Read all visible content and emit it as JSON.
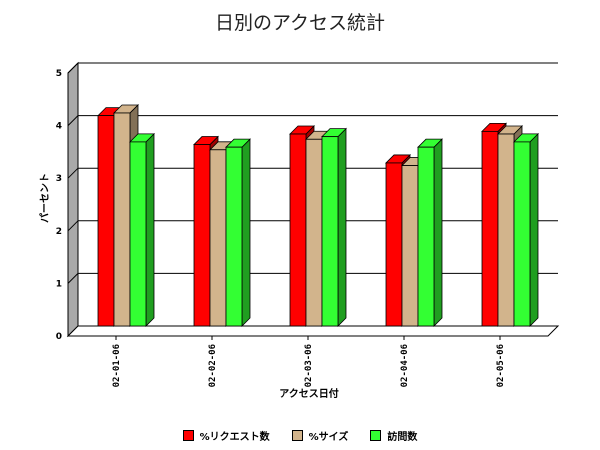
{
  "chart_data": {
    "type": "bar",
    "title": "日別のアクセス統計",
    "xlabel": "アクセス日付",
    "ylabel": "パーセント",
    "categories": [
      "02-01-06",
      "02-02-06",
      "02-03-06",
      "02-04-06",
      "02-05-06"
    ],
    "ylim": [
      0,
      5
    ],
    "yticks": [
      "0",
      "1",
      "2",
      "3",
      "4",
      "5"
    ],
    "grid": true,
    "legend_position": "bottom",
    "series": [
      {
        "name": "%リクエスト数",
        "color": "#ff0000",
        "values": [
          4.0,
          3.45,
          3.65,
          3.1,
          3.7
        ]
      },
      {
        "name": "%サイズ",
        "color": "#d2b48c",
        "values": [
          4.05,
          3.35,
          3.55,
          3.05,
          3.65
        ]
      },
      {
        "name": "訪問数",
        "color": "#33ff33",
        "values": [
          3.5,
          3.4,
          3.6,
          3.4,
          3.5
        ]
      }
    ]
  }
}
